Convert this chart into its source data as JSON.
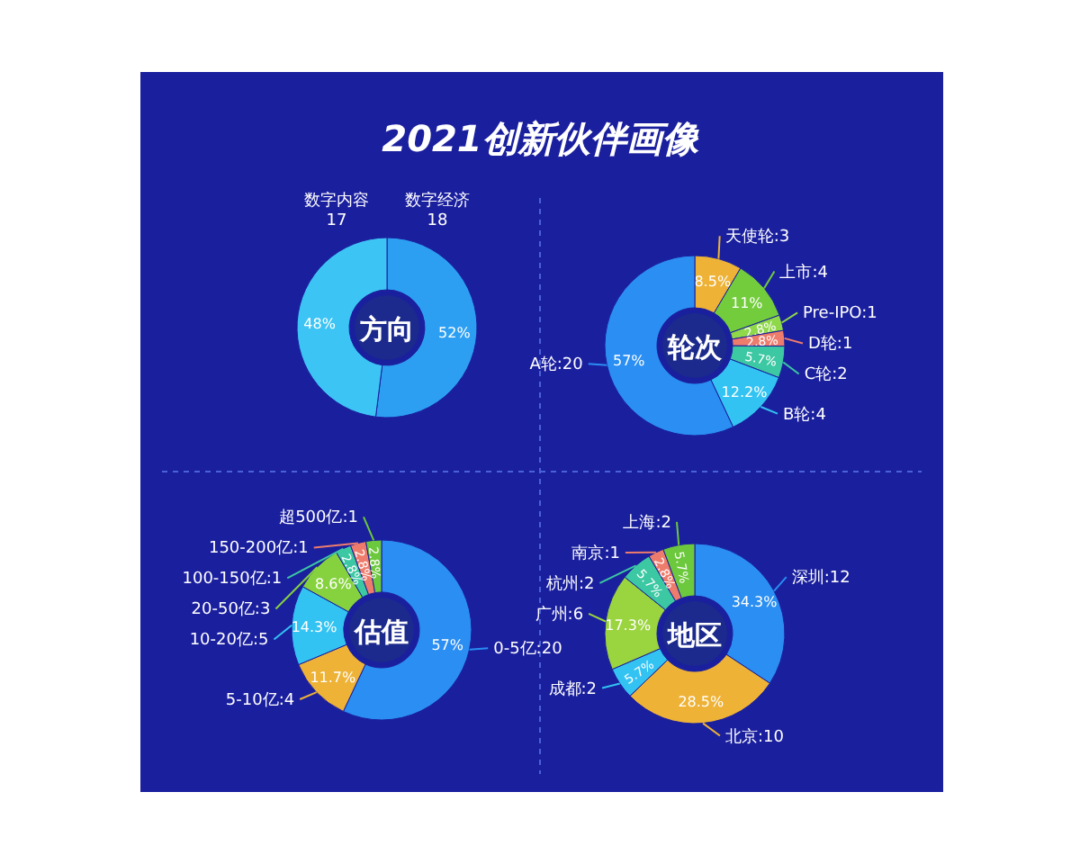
{
  "chart_data": [
    {
      "type": "donut",
      "title": "方向",
      "annotations": [
        "2021创新伙伴画像"
      ],
      "categories": [
        "数字经济\n18",
        "数字内容\n17"
      ],
      "values": [
        52,
        48
      ],
      "value_labels": [
        "52%",
        "48%"
      ],
      "colors": [
        "#2d9ff2",
        "#3cc4f4"
      ]
    },
    {
      "type": "donut",
      "title": "轮次",
      "categories": [
        "天使轮:3",
        "上市:4",
        "Pre-IPO:1",
        "D轮:1",
        "C轮:2",
        "B轮:4",
        "A轮:20"
      ],
      "values": [
        8.5,
        11,
        2.8,
        2.8,
        5.7,
        12.2,
        57
      ],
      "value_labels": [
        "8.5%",
        "11%",
        "2.8%",
        "2.8%",
        "5.7%",
        "12.2%",
        "57%"
      ],
      "colors": [
        "#eeb236",
        "#72cc3c",
        "#8fd84a",
        "#ee7c6c",
        "#3cc8a2",
        "#33c3f2",
        "#2a8ef2"
      ]
    },
    {
      "type": "donut",
      "title": "估值",
      "categories": [
        "0-5亿:20",
        "5-10亿:4",
        "10-20亿:5",
        "20-50亿:3",
        "100-150亿:1",
        "150-200亿:1",
        "超500亿:1"
      ],
      "values": [
        57,
        11.7,
        14.3,
        8.6,
        2.8,
        2.8,
        2.8
      ],
      "value_labels": [
        "57%",
        "11.7%",
        "14.3%",
        "8.6%",
        "2.8%",
        "2.8%",
        "2.8%"
      ],
      "colors": [
        "#2a8ef2",
        "#eeb236",
        "#33c3f2",
        "#86d23e",
        "#3cc8a2",
        "#ee7c6c",
        "#6cc83c"
      ]
    },
    {
      "type": "donut",
      "title": "地区",
      "categories": [
        "深圳:12",
        "北京:10",
        "成都:2",
        "广州:6",
        "杭州:2",
        "南京:1",
        "上海:2"
      ],
      "values": [
        34.3,
        28.5,
        5.7,
        17.3,
        5.7,
        2.8,
        5.7
      ],
      "value_labels": [
        "34.3%",
        "28.5%",
        "5.7%",
        "17.3%",
        "5.7%",
        "2.8%",
        "5.7%"
      ],
      "colors": [
        "#2a8ef2",
        "#eeb236",
        "#33c3f2",
        "#9ad43e",
        "#3cc8a2",
        "#ee7c6c",
        "#6cc83c"
      ]
    }
  ]
}
